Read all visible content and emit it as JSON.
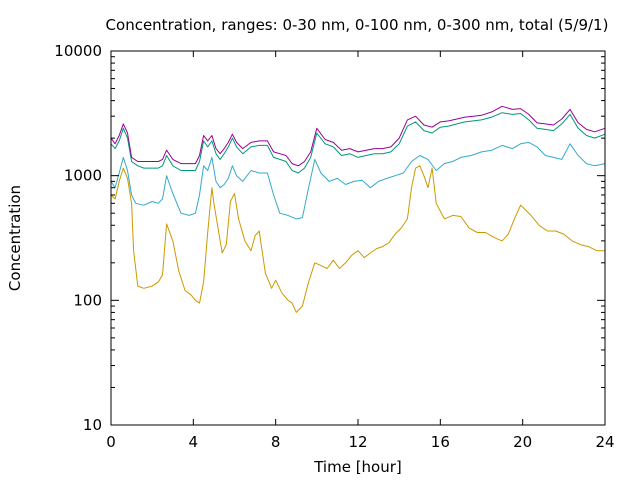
{
  "chart_data": {
    "type": "line",
    "title": "Concentration, ranges: 0-30 nm, 0-100 nm, 0-300 nm, total (5/9/1)",
    "xlabel": "Time [hour]",
    "ylabel": "Concentration",
    "xlim": [
      0,
      24
    ],
    "ylim": [
      10,
      10000
    ],
    "yscale": "log",
    "grid": false,
    "legend": "none",
    "x_ticks": [
      0,
      4,
      8,
      12,
      16,
      20,
      24
    ],
    "x_tick_labels": [
      "0",
      "4",
      "8",
      "12",
      "16",
      "20",
      "24"
    ],
    "y_ticks": [
      10,
      100,
      1000,
      10000
    ],
    "y_tick_labels": [
      "10",
      "100",
      "1000",
      "10000"
    ],
    "series": [
      {
        "color": "#cc9900",
        "x": [
          0,
          0.2,
          0.4,
          0.6,
          0.8,
          1.0,
          1.1,
          1.3,
          1.6,
          2.0,
          2.3,
          2.5,
          2.7,
          3.0,
          3.3,
          3.6,
          3.9,
          4.1,
          4.3,
          4.5,
          4.7,
          4.9,
          5.0,
          5.2,
          5.4,
          5.6,
          5.8,
          6.0,
          6.2,
          6.5,
          6.8,
          7.0,
          7.2,
          7.5,
          7.8,
          8.0,
          8.3,
          8.6,
          8.8,
          9.0,
          9.3,
          9.6,
          9.9,
          10.2,
          10.5,
          10.8,
          11.1,
          11.4,
          11.7,
          12.0,
          12.3,
          12.6,
          12.9,
          13.2,
          13.5,
          13.8,
          14.1,
          14.4,
          14.6,
          14.8,
          15.0,
          15.2,
          15.4,
          15.6,
          15.8,
          16.2,
          16.6,
          17.0,
          17.4,
          17.8,
          18.2,
          18.6,
          19.0,
          19.3,
          19.6,
          19.9,
          20.2,
          20.5,
          20.8,
          21.2,
          21.6,
          22.0,
          22.4,
          22.8,
          23.2,
          23.6,
          24.0
        ],
        "y": [
          700,
          650,
          900,
          1150,
          950,
          600,
          250,
          130,
          125,
          130,
          140,
          160,
          410,
          300,
          170,
          120,
          110,
          100,
          95,
          140,
          350,
          800,
          600,
          380,
          240,
          280,
          620,
          720,
          450,
          300,
          250,
          330,
          360,
          165,
          125,
          145,
          115,
          100,
          95,
          80,
          90,
          140,
          200,
          190,
          180,
          210,
          180,
          200,
          230,
          250,
          220,
          240,
          260,
          270,
          290,
          340,
          380,
          450,
          800,
          1150,
          1200,
          1000,
          800,
          1150,
          600,
          450,
          480,
          470,
          380,
          350,
          350,
          320,
          300,
          340,
          450,
          580,
          520,
          460,
          400,
          360,
          360,
          340,
          300,
          280,
          270,
          250,
          250
        ]
      },
      {
        "color": "#33aacc",
        "x": [
          0,
          0.2,
          0.4,
          0.6,
          0.8,
          1.0,
          1.2,
          1.6,
          2.0,
          2.3,
          2.5,
          2.7,
          3.0,
          3.4,
          3.8,
          4.1,
          4.3,
          4.5,
          4.7,
          4.9,
          5.1,
          5.3,
          5.5,
          5.7,
          5.9,
          6.1,
          6.4,
          6.8,
          7.2,
          7.6,
          7.9,
          8.2,
          8.6,
          9.0,
          9.3,
          9.6,
          9.9,
          10.2,
          10.6,
          11.0,
          11.4,
          11.8,
          12.2,
          12.6,
          13.0,
          13.4,
          13.8,
          14.2,
          14.6,
          15.0,
          15.4,
          15.8,
          16.2,
          16.6,
          17.0,
          17.5,
          18.0,
          18.5,
          19.0,
          19.5,
          19.9,
          20.3,
          20.7,
          21.1,
          21.5,
          21.9,
          22.3,
          22.7,
          23.1,
          23.5,
          24.0
        ],
        "y": [
          900,
          800,
          1050,
          1400,
          1100,
          700,
          600,
          580,
          620,
          600,
          650,
          1000,
          720,
          500,
          480,
          500,
          700,
          1200,
          1100,
          1400,
          900,
          800,
          850,
          950,
          1200,
          1000,
          900,
          1100,
          1050,
          1050,
          700,
          500,
          480,
          450,
          460,
          800,
          1350,
          1050,
          900,
          950,
          850,
          900,
          920,
          800,
          900,
          950,
          1000,
          1050,
          1300,
          1450,
          1350,
          1100,
          1250,
          1300,
          1400,
          1450,
          1550,
          1600,
          1750,
          1650,
          1800,
          1850,
          1700,
          1450,
          1400,
          1350,
          1800,
          1450,
          1250,
          1200,
          1250
        ]
      },
      {
        "color": "#009977",
        "x": [
          0,
          0.2,
          0.4,
          0.6,
          0.8,
          1.0,
          1.3,
          1.6,
          2.0,
          2.3,
          2.5,
          2.7,
          3.0,
          3.4,
          3.8,
          4.1,
          4.3,
          4.5,
          4.7,
          4.9,
          5.1,
          5.3,
          5.5,
          5.7,
          5.9,
          6.1,
          6.4,
          6.8,
          7.2,
          7.6,
          7.9,
          8.2,
          8.5,
          8.8,
          9.1,
          9.4,
          9.7,
          10.0,
          10.4,
          10.8,
          11.2,
          11.6,
          12.0,
          12.4,
          12.8,
          13.2,
          13.6,
          14.0,
          14.4,
          14.8,
          15.2,
          15.6,
          16.0,
          16.4,
          16.8,
          17.2,
          17.6,
          18.0,
          18.5,
          19.0,
          19.5,
          19.9,
          20.3,
          20.7,
          21.1,
          21.5,
          21.9,
          22.3,
          22.7,
          23.1,
          23.5,
          24.0
        ],
        "y": [
          1800,
          1650,
          1900,
          2400,
          2000,
          1300,
          1200,
          1150,
          1150,
          1150,
          1200,
          1450,
          1200,
          1100,
          1100,
          1100,
          1300,
          1900,
          1700,
          1900,
          1500,
          1350,
          1500,
          1700,
          2000,
          1700,
          1500,
          1700,
          1750,
          1750,
          1400,
          1350,
          1300,
          1100,
          1050,
          1150,
          1400,
          2200,
          1800,
          1700,
          1450,
          1500,
          1400,
          1450,
          1500,
          1500,
          1550,
          1800,
          2500,
          2700,
          2300,
          2200,
          2450,
          2500,
          2600,
          2700,
          2750,
          2800,
          2950,
          3200,
          3100,
          3150,
          2800,
          2400,
          2350,
          2300,
          2600,
          3100,
          2400,
          2100,
          2000,
          2150
        ]
      },
      {
        "color": "#990099",
        "x": [
          0,
          0.2,
          0.4,
          0.6,
          0.8,
          1.0,
          1.3,
          1.6,
          2.0,
          2.3,
          2.5,
          2.7,
          3.0,
          3.4,
          3.8,
          4.1,
          4.3,
          4.5,
          4.7,
          4.9,
          5.1,
          5.3,
          5.5,
          5.7,
          5.9,
          6.1,
          6.4,
          6.8,
          7.2,
          7.6,
          7.9,
          8.2,
          8.5,
          8.8,
          9.1,
          9.4,
          9.7,
          10.0,
          10.4,
          10.8,
          11.2,
          11.6,
          12.0,
          12.4,
          12.8,
          13.2,
          13.6,
          14.0,
          14.4,
          14.8,
          15.2,
          15.6,
          16.0,
          16.4,
          16.8,
          17.2,
          17.6,
          18.0,
          18.5,
          19.0,
          19.5,
          19.9,
          20.3,
          20.7,
          21.1,
          21.5,
          21.9,
          22.3,
          22.7,
          23.1,
          23.5,
          24.0
        ],
        "y": [
          2000,
          1800,
          2100,
          2600,
          2200,
          1400,
          1300,
          1300,
          1300,
          1300,
          1350,
          1600,
          1350,
          1250,
          1250,
          1250,
          1450,
          2100,
          1900,
          2100,
          1650,
          1500,
          1650,
          1850,
          2150,
          1850,
          1650,
          1850,
          1900,
          1900,
          1550,
          1500,
          1450,
          1250,
          1200,
          1300,
          1550,
          2400,
          1950,
          1850,
          1600,
          1650,
          1550,
          1600,
          1650,
          1650,
          1700,
          2000,
          2800,
          3000,
          2550,
          2450,
          2700,
          2750,
          2850,
          2950,
          3000,
          3050,
          3250,
          3600,
          3400,
          3450,
          3100,
          2650,
          2600,
          2550,
          2850,
          3400,
          2650,
          2350,
          2250,
          2400
        ]
      }
    ]
  }
}
